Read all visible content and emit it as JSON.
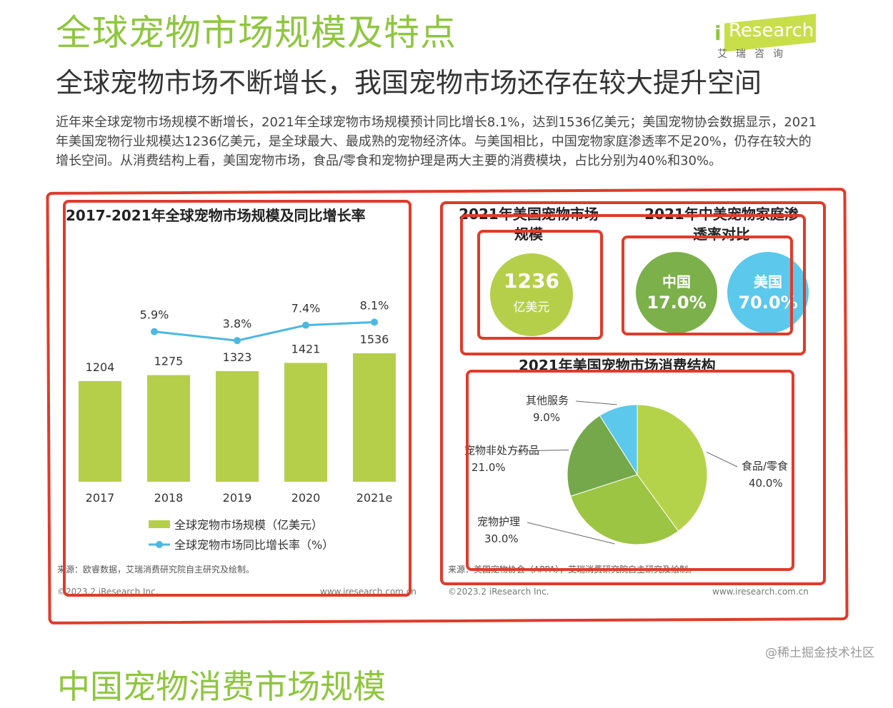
{
  "header": {
    "title": "全球宠物市场规模及特点",
    "subtitle": "全球宠物市场不断增长，我国宠物市场还存在较大提升空间",
    "paragraph": "近年来全球宠物市场规模不断增长，2021年全球宠物市场规模预计同比增长8.1%，达到1536亿美元；美国宠物协会数据显示，2021年美国宠物行业规模达1236亿美元，是全球最大、最成熟的宠物经济体。与美国相比，中国宠物家庭渗透率不足20%，仍存在较大的增长空间。从消费结构上看，美国宠物市场，食品/零食和宠物护理是两大主要的消费模块，占比分别为40%和30%。"
  },
  "logo": {
    "word": "Research",
    "i": "i",
    "cn": "艾瑞咨询"
  },
  "colors": {
    "green": "#b5cf4b",
    "line_blue": "#4cb8e0",
    "title_green": "#8fc63f",
    "box_red": "#e03b2a"
  },
  "chart_data": [
    {
      "type": "bar",
      "title": "2017-2021年全球宠物市场规模及同比增长率",
      "categories": [
        "2017",
        "2018",
        "2019",
        "2020",
        "2021e"
      ],
      "series": [
        {
          "name": "全球宠物市场规模（亿美元）",
          "values": [
            1204,
            1275,
            1323,
            1421,
            1536
          ]
        },
        {
          "name": "全球宠物市场同比增长率（%）",
          "type": "line",
          "values": [
            null,
            5.9,
            3.8,
            7.4,
            8.1
          ],
          "labels": [
            "",
            "5.9%",
            "3.8%",
            "7.4%",
            "8.1%"
          ]
        }
      ],
      "source": "来源：欧睿数据，艾瑞消费研究院自主研究及绘制。",
      "footer_left": "©2023.2 iResearch Inc.",
      "footer_right": "www.iresearch.com.cn"
    },
    {
      "type": "table",
      "title": "2021年美国宠物市场规模",
      "value": "1236",
      "unit": "亿美元"
    },
    {
      "type": "table",
      "title": "2021年中美宠物家庭渗透率对比",
      "items": [
        {
          "country": "中国",
          "value": "17.0%",
          "color": "#7bb04a"
        },
        {
          "country": "美国",
          "value": "70.0%",
          "color": "#5bc8ec"
        }
      ]
    },
    {
      "type": "pie",
      "title": "2021年美国宠物市场消费结构",
      "slices": [
        {
          "name": "食品/零食",
          "value": 40.0,
          "label": "40.0%",
          "color": "#b5d34a"
        },
        {
          "name": "宠物护理",
          "value": 30.0,
          "label": "30.0%",
          "color": "#9cc544"
        },
        {
          "name": "宠物非处方药品",
          "value": 21.0,
          "label": "21.0%",
          "color": "#74a84a"
        },
        {
          "name": "其他服务",
          "value": 9.0,
          "label": "9.0%",
          "color": "#5bc8ec"
        }
      ],
      "source": "来源：美国宠物协会（APPA），艾瑞消费研究院自主研究及绘制。",
      "footer_left": "©2023.2 iResearch Inc.",
      "footer_right": "www.iresearch.com.cn"
    }
  ],
  "watermark": "@稀土掘金技术社区",
  "next_section_title": "中国宠物消费市场规模"
}
